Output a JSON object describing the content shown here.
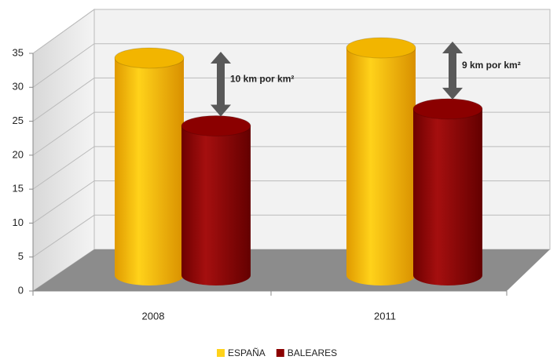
{
  "chart_data": {
    "type": "bar3d",
    "categories": [
      "2008",
      "2011"
    ],
    "series": [
      {
        "name": "ESPAÑA",
        "color": "#f2b500",
        "values": [
          32,
          33.5
        ]
      },
      {
        "name": "BALEARES",
        "color": "#8b0000",
        "values": [
          22,
          24.5
        ]
      }
    ],
    "annotations": [
      "10 km por km²",
      "9 km por km²"
    ],
    "ylim": [
      0,
      35
    ],
    "yticks": [
      0,
      5,
      10,
      15,
      20,
      25,
      30,
      35
    ],
    "grid": true,
    "legend": "bottom"
  }
}
